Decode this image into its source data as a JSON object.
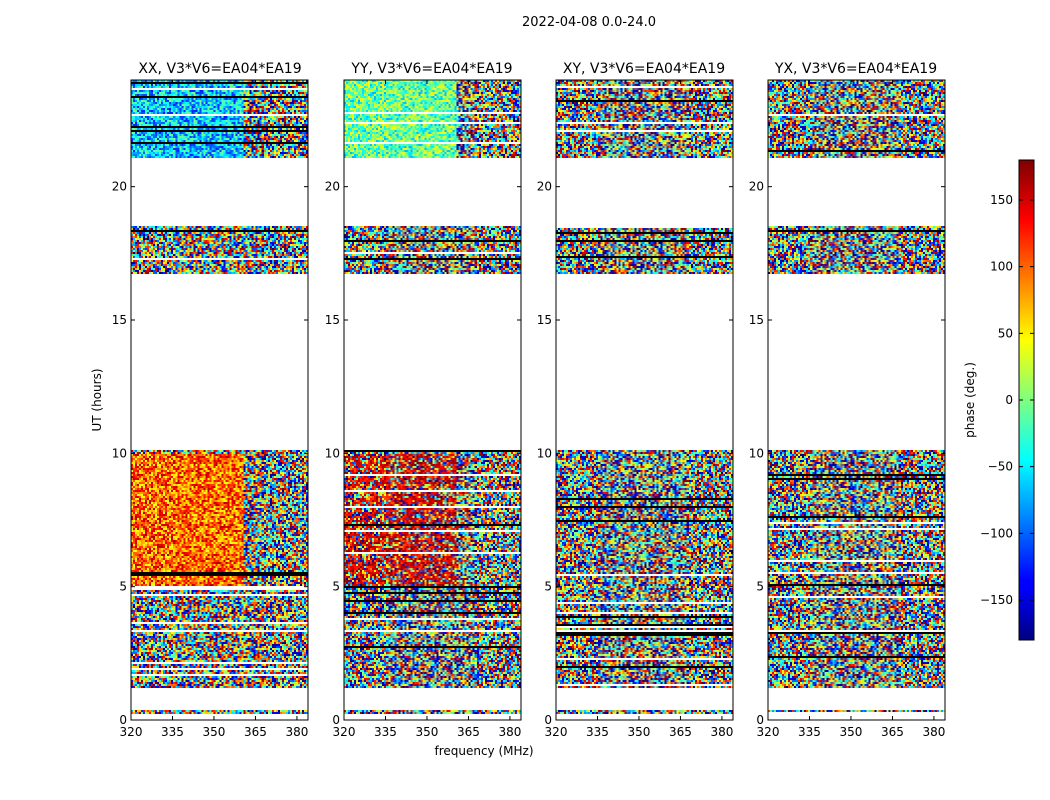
{
  "figure_title": "2022-04-08 0.0-24.0",
  "chart_data": {
    "type": "heatmap",
    "xlabel": "frequency (MHz)",
    "ylabel": "UT (hours)",
    "xlim": [
      320,
      384
    ],
    "ylim": [
      0,
      24
    ],
    "xticks": [
      "320",
      "335",
      "350",
      "365",
      "380"
    ],
    "yticks": [
      "0",
      "5",
      "10",
      "15",
      "20"
    ],
    "panels": [
      {
        "title": "XX, V3*V6=EA04*EA19",
        "style": "blue-green-then-red"
      },
      {
        "title": "YY, V3*V6=EA04*EA19",
        "style": "cyan-then-red"
      },
      {
        "title": "XY, V3*V6=EA04*EA19",
        "style": "random"
      },
      {
        "title": "YX, V3*V6=EA04*EA19",
        "style": "random"
      }
    ],
    "data_blocks_ut_hours": [
      [
        0.25,
        0.4
      ],
      [
        1.2,
        3.3
      ],
      [
        3.4,
        10.1
      ],
      [
        16.7,
        18.5
      ],
      [
        21.1,
        24.0
      ]
    ],
    "colorbar": {
      "label": "phase (deg.)",
      "range": [
        -180,
        180
      ],
      "ticks": [
        "150",
        "100",
        "50",
        "0",
        "−50",
        "−100",
        "−150"
      ],
      "tick_values": [
        150,
        100,
        50,
        0,
        -50,
        -100,
        -150
      ],
      "colormap": "jet"
    }
  }
}
